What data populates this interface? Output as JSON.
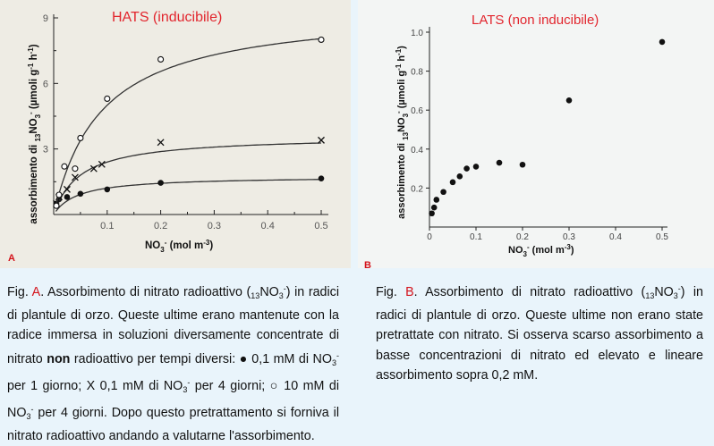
{
  "colors": {
    "title": "#e2262e",
    "panel_label": "#d4141c",
    "ink": "#222222",
    "page_bg": "#e9f4fb"
  },
  "chart_data": [
    {
      "type": "scatter",
      "title": "HATS (inducibile)",
      "panel_label": "A",
      "ylabel_parts": [
        "assorbimento di ",
        "13",
        "NO",
        "3",
        "-",
        " (µmoli g",
        "-1",
        " h",
        "-1",
        ")"
      ],
      "xlabel_parts": [
        "NO",
        "3",
        "-",
        " (mol m",
        "-3",
        ")"
      ],
      "xlim": [
        0,
        0.5
      ],
      "ylim": [
        0,
        9
      ],
      "x_ticks": [
        0.1,
        0.2,
        0.3,
        0.4,
        0.5
      ],
      "x_tick_labels": [
        "0.1",
        "0.2",
        "0.3",
        "0.4",
        "0.5"
      ],
      "y_ticks": [
        3,
        6,
        9
      ],
      "y_tick_labels": [
        "3",
        "6",
        "9"
      ],
      "curves": [
        {
          "name": "0,1 mM per 1 giorno",
          "marker": "filled-circle",
          "vmax": 1.75,
          "km": 0.045,
          "x": [
            0.005,
            0.01,
            0.025,
            0.05,
            0.1,
            0.2,
            0.5
          ],
          "y": [
            0.5,
            0.7,
            0.8,
            0.95,
            1.15,
            1.45,
            1.65
          ]
        },
        {
          "name": "0,1 mM per 4 giorni",
          "marker": "x",
          "vmax": 3.6,
          "km": 0.05,
          "x": [
            0.005,
            0.01,
            0.025,
            0.04,
            0.075,
            0.09,
            0.2,
            0.5
          ],
          "y": [
            0.5,
            0.8,
            1.15,
            1.7,
            2.1,
            2.3,
            3.3,
            3.4
          ]
        },
        {
          "name": "10 mM per 4 giorni",
          "marker": "open-circle",
          "vmax": 9.5,
          "km": 0.09,
          "x": [
            0.005,
            0.01,
            0.02,
            0.04,
            0.05,
            0.1,
            0.2,
            0.5
          ],
          "y": [
            0.4,
            0.9,
            2.2,
            2.1,
            3.5,
            5.3,
            7.1,
            8.0
          ]
        }
      ]
    },
    {
      "type": "scatter",
      "title": "LATS (non inducibile)",
      "panel_label": "B",
      "ylabel_parts": [
        "assorbimento di ",
        "13",
        "NO",
        "3",
        "-",
        " (µmoli g",
        "-1",
        " h",
        "-1",
        ")"
      ],
      "xlabel_parts": [
        "NO",
        "3",
        "-",
        " (mol m",
        "-3",
        ")"
      ],
      "xlim": [
        0,
        0.5
      ],
      "ylim": [
        0,
        1.0
      ],
      "x_ticks": [
        0,
        0.1,
        0.2,
        0.3,
        0.4,
        0.5
      ],
      "x_tick_labels": [
        "0",
        "0.1",
        "0.2",
        "0.3",
        "0.4",
        "0.5"
      ],
      "y_ticks": [
        0.2,
        0.4,
        0.6,
        0.8,
        1.0
      ],
      "y_tick_labels": [
        "0.2",
        "0.4",
        "0.6",
        "0.8",
        "1.0"
      ],
      "series": [
        {
          "marker": "filled-circle",
          "x": [
            0.005,
            0.01,
            0.015,
            0.03,
            0.05,
            0.065,
            0.08,
            0.1,
            0.15,
            0.2,
            0.3,
            0.5
          ],
          "y": [
            0.07,
            0.1,
            0.14,
            0.18,
            0.23,
            0.26,
            0.3,
            0.31,
            0.33,
            0.32,
            0.65,
            0.95
          ]
        }
      ]
    }
  ],
  "caption_a": {
    "fig": "Fig. ",
    "letter": "A",
    "t1": ". Assorbimento di nitrato radioattivo (",
    "s13": "13",
    "no": "NO",
    "s3": "3",
    "minus": "-",
    "t2": ") in radici di plantule di orzo. Queste ultime erano mantenute con la radice immersa in soluzioni diversamente concentrate di nitrato ",
    "bold": "non",
    "t3": " radioattivo per tempi diversi: ● 0,1 mM di NO",
    "t4": " per 1 giorno; X 0,1 mM di NO",
    "t5": " per 4 giorni; ○ 10 mM di NO",
    "t6": " per 4 giorni. Dopo questo pretrattamento si forniva il nitrato radioattivo andando a valutarne l'assorbimento."
  },
  "caption_b": {
    "fig": "Fig. ",
    "letter": "B",
    "t1": ". Assorbimento di nitrato radioattivo (",
    "s13": "13",
    "no": "NO",
    "s3": "3",
    "minus": "-",
    "t2": ") in radici di plantule di orzo. Queste ultime non erano state pretrattate con nitrato. Si osserva scarso assorbimento a basse concentrazioni di nitrato ed elevato e lineare assorbimento sopra 0,2 mM."
  }
}
